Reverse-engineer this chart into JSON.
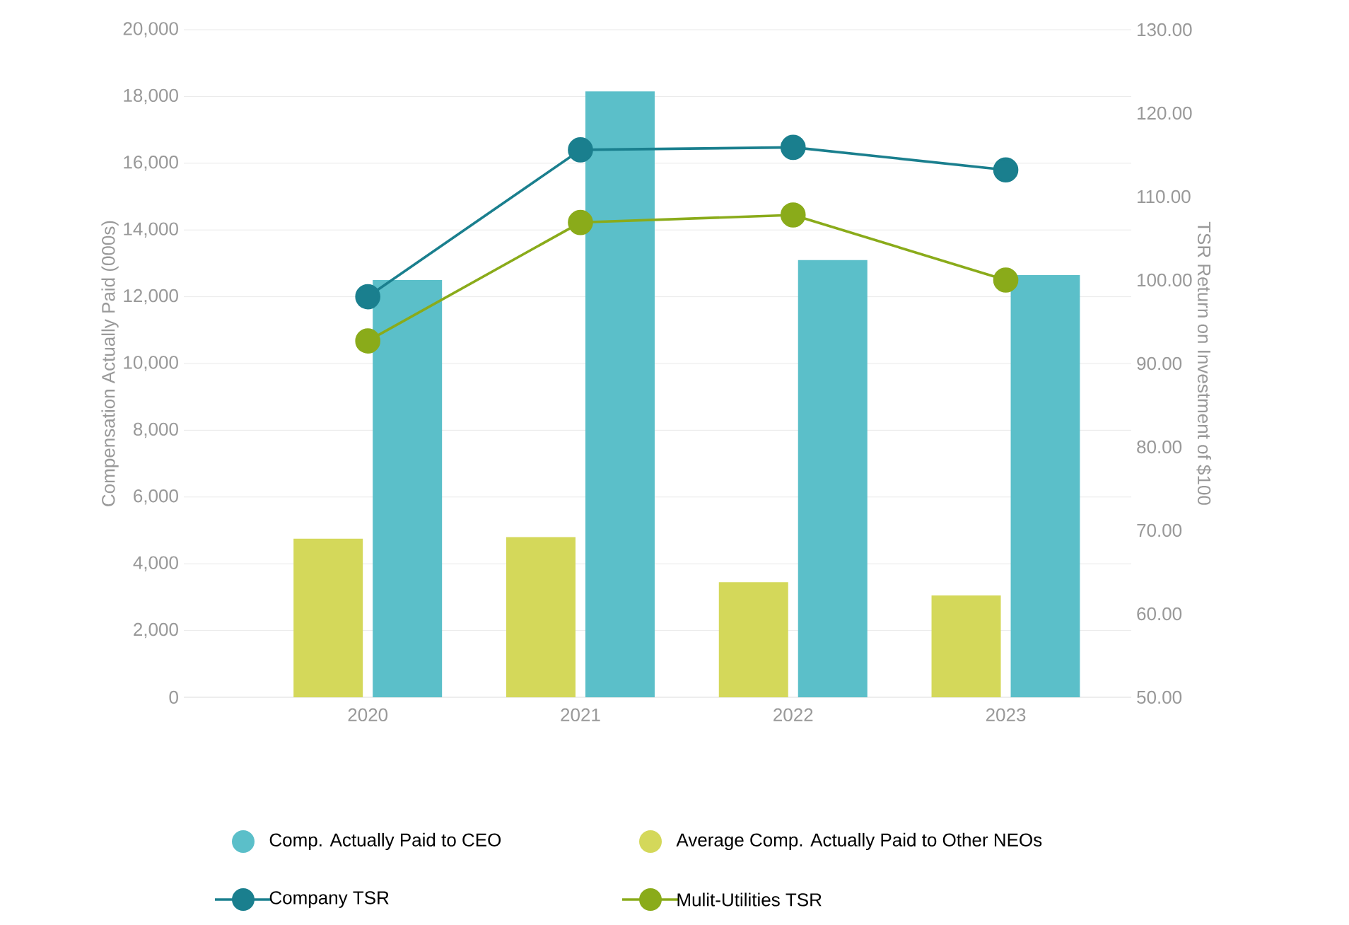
{
  "chart_data": {
    "type": "bar",
    "ylabel": "Compensation Actually Paid (000s)",
    "y2label": "TSR Return on Investment of $100",
    "categories": [
      "2020",
      "2021",
      "2022",
      "2023"
    ],
    "series": [
      {
        "name": "Average Comp. Actually Paid to Other NEOs",
        "color": "#d4d85a",
        "values": [
          4750,
          4800,
          3450,
          3050
        ]
      },
      {
        "name": "Comp. Actually Paid to CEO",
        "color": "#5bbfc9",
        "values": [
          12500,
          18150,
          13100,
          12650
        ]
      },
      {
        "name": "Company TSR",
        "type": "line",
        "axis": "y2",
        "color": "#1a7f8e",
        "values": [
          98.0,
          115.6,
          115.9,
          113.2
        ]
      },
      {
        "name": "Mulit-Utilities TSR",
        "type": "line",
        "axis": "y2",
        "color": "#8aab1a",
        "values": [
          92.7,
          106.9,
          107.8,
          100.0
        ]
      }
    ],
    "ylim": [
      0,
      20000
    ],
    "yticks": [
      {
        "value": 0,
        "label": "0"
      },
      {
        "value": 2000,
        "label": "2,000"
      },
      {
        "value": 4000,
        "label": "4,000"
      },
      {
        "value": 6000,
        "label": "6,000"
      },
      {
        "value": 8000,
        "label": "8,000"
      },
      {
        "value": 10000,
        "label": "10,000"
      },
      {
        "value": 12000,
        "label": "12,000"
      },
      {
        "value": 14000,
        "label": "14,000"
      },
      {
        "value": 16000,
        "label": "16,000"
      },
      {
        "value": 18000,
        "label": "18,000"
      },
      {
        "value": 20000,
        "label": "20,000"
      }
    ],
    "y2lim": [
      50,
      130
    ],
    "y2ticks": [
      {
        "value": 50,
        "label": "50.00"
      },
      {
        "value": 60,
        "label": "60.00"
      },
      {
        "value": 70,
        "label": "70.00"
      },
      {
        "value": 80,
        "label": "80.00"
      },
      {
        "value": 90,
        "label": "90.00"
      },
      {
        "value": 100,
        "label": "100.00"
      },
      {
        "value": 110,
        "label": "110.00"
      },
      {
        "value": 120,
        "label": "120.00"
      },
      {
        "value": 130,
        "label": "130.00"
      }
    ],
    "grid": "y",
    "legend": "bottom",
    "marker": "circle",
    "line_style": "solid"
  }
}
